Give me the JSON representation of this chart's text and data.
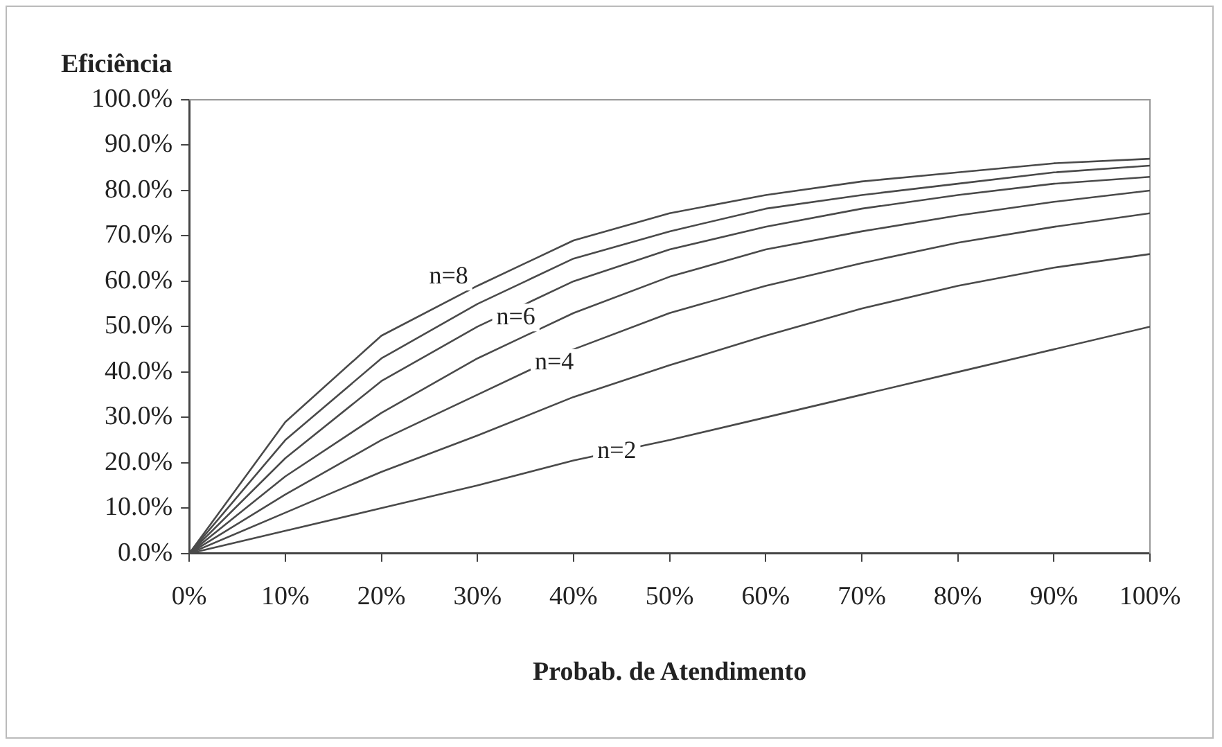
{
  "chart_data": {
    "type": "line",
    "ylabel": "Eficiência",
    "xlabel": "Probab. de Atendimento",
    "x": [
      0,
      10,
      20,
      30,
      40,
      50,
      60,
      70,
      80,
      90,
      100
    ],
    "series": [
      {
        "color": "#4a4a4a",
        "values": [
          0,
          5,
          10,
          15,
          20.5,
          25,
          30,
          35,
          40,
          45,
          50
        ]
      },
      {
        "color": "#4a4a4a",
        "values": [
          0,
          9,
          18,
          26,
          34.5,
          41.5,
          48,
          54,
          59,
          63,
          66
        ]
      },
      {
        "color": "#4a4a4a",
        "values": [
          0,
          13,
          25,
          35,
          45,
          53,
          59,
          64,
          68.5,
          72,
          75
        ]
      },
      {
        "color": "#4a4a4a",
        "values": [
          0,
          17,
          31,
          43,
          53,
          61,
          67,
          71,
          74.5,
          77.5,
          80
        ]
      },
      {
        "color": "#4a4a4a",
        "values": [
          0,
          21,
          38,
          50,
          60,
          67,
          72,
          76,
          79,
          81.5,
          83
        ]
      },
      {
        "color": "#4a4a4a",
        "values": [
          0,
          25,
          43,
          55,
          65,
          71,
          76,
          79,
          81.5,
          84,
          85.5
        ]
      },
      {
        "color": "#4a4a4a",
        "values": [
          0,
          29,
          48,
          59,
          69,
          75,
          79,
          82,
          84,
          86,
          87
        ]
      }
    ],
    "annotations": [
      {
        "text": "n=8",
        "x": 27,
        "y": 61
      },
      {
        "text": "n=6",
        "x": 34,
        "y": 52
      },
      {
        "text": "n=4",
        "x": 38,
        "y": 42
      },
      {
        "text": "n=2",
        "x": 44.5,
        "y": 22.5
      }
    ],
    "xlim": [
      0,
      100
    ],
    "ylim": [
      0,
      100
    ],
    "xticks": [
      {
        "value": 0,
        "label": "0%"
      },
      {
        "value": 10,
        "label": "10%"
      },
      {
        "value": 20,
        "label": "20%"
      },
      {
        "value": 30,
        "label": "30%"
      },
      {
        "value": 40,
        "label": "40%"
      },
      {
        "value": 50,
        "label": "50%"
      },
      {
        "value": 60,
        "label": "60%"
      },
      {
        "value": 70,
        "label": "70%"
      },
      {
        "value": 80,
        "label": "80%"
      },
      {
        "value": 90,
        "label": "90%"
      },
      {
        "value": 100,
        "label": "100%"
      }
    ],
    "yticks": [
      {
        "value": 0,
        "label": "0.0%"
      },
      {
        "value": 10,
        "label": "10.0%"
      },
      {
        "value": 20,
        "label": "20.0%"
      },
      {
        "value": 30,
        "label": "30.0%"
      },
      {
        "value": 40,
        "label": "40.0%"
      },
      {
        "value": 50,
        "label": "50.0%"
      },
      {
        "value": 60,
        "label": "60.0%"
      },
      {
        "value": 70,
        "label": "70.0%"
      },
      {
        "value": 80,
        "label": "80.0%"
      },
      {
        "value": 90,
        "label": "90.0%"
      },
      {
        "value": 100,
        "label": "100.0%"
      }
    ],
    "grid": false,
    "legend": false,
    "line_style": "solid"
  }
}
